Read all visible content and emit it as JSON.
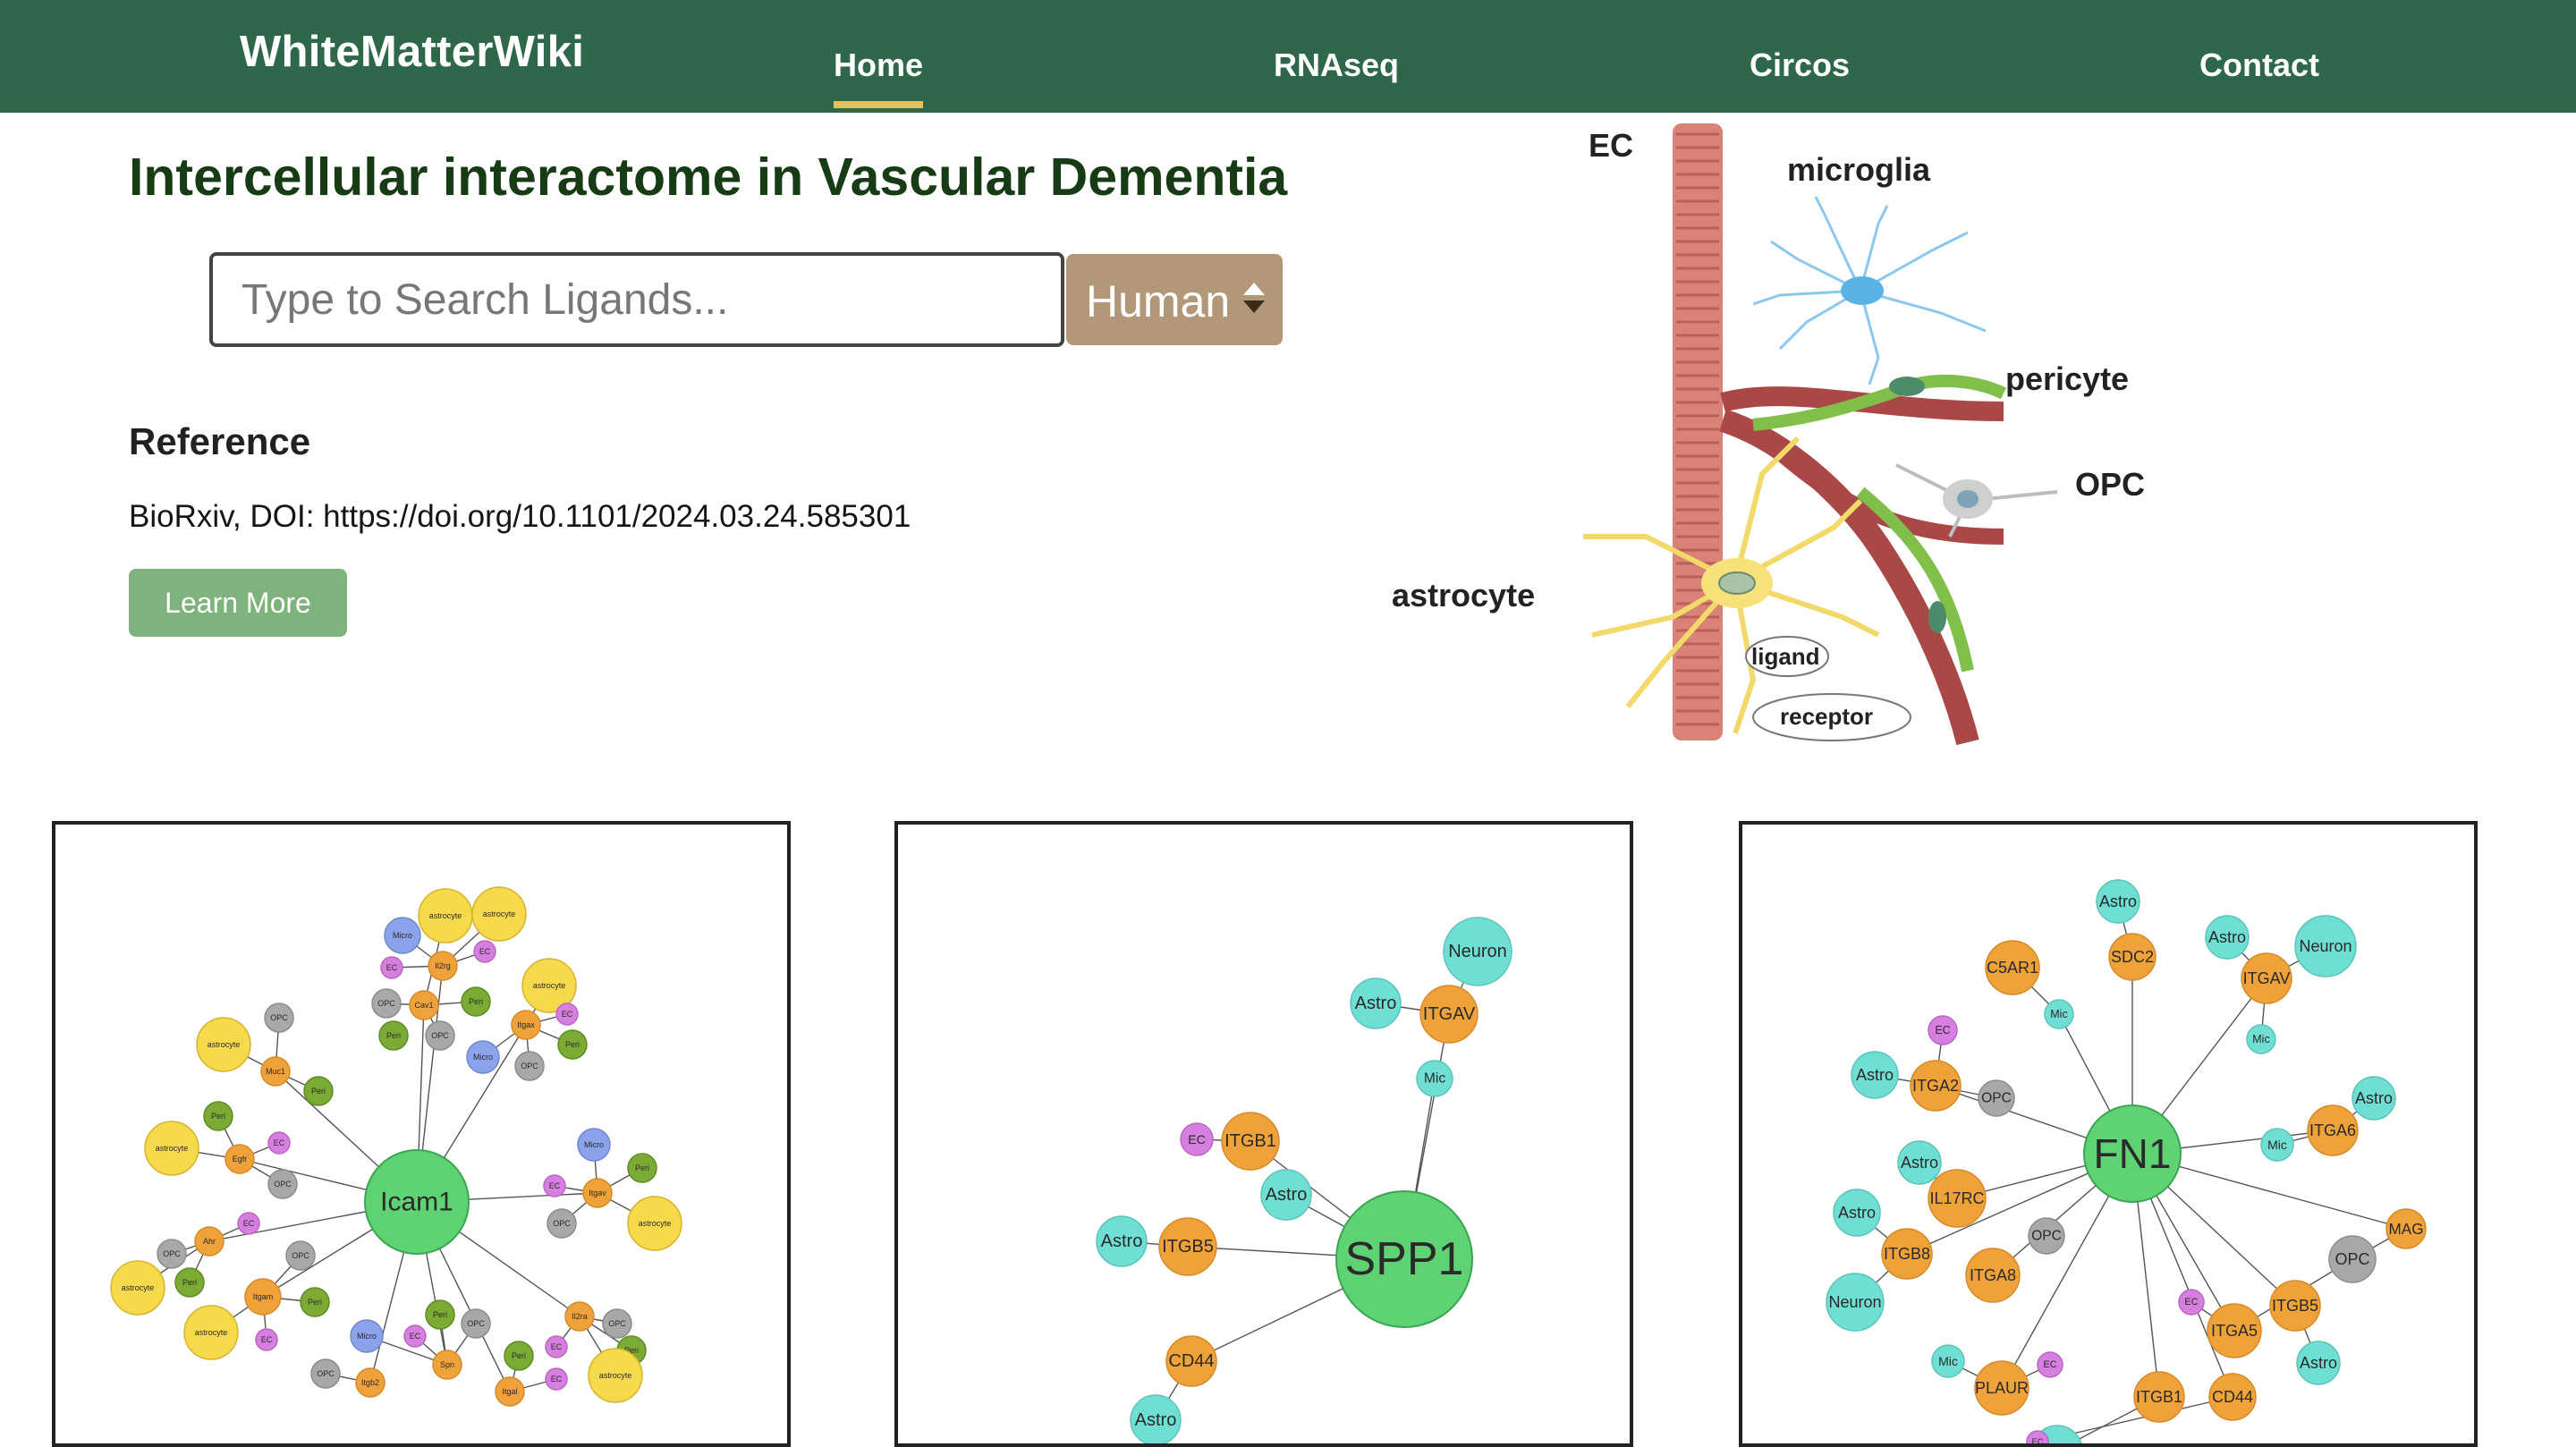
{
  "navbar": {
    "brand": "WhiteMatterWiki",
    "items": [
      {
        "label": "Home",
        "active": true
      },
      {
        "label": "RNAseq",
        "active": false
      },
      {
        "label": "Circos",
        "active": false
      },
      {
        "label": "Contact",
        "active": false
      }
    ]
  },
  "hero": {
    "title": "Intercellular interactome in Vascular Dementia",
    "search": {
      "placeholder": "Type to Search Ligands...",
      "value": ""
    },
    "species_select": {
      "selected": "Human"
    },
    "reference_heading": "Reference",
    "reference_text": "BioRxiv, DOI: https://doi.org/10.1101/2024.03.24.585301",
    "learn_more_label": "Learn More"
  },
  "illustration": {
    "labels": {
      "ec": "EC",
      "microglia": "microglia",
      "pericyte": "pericyte",
      "opc": "OPC",
      "astrocyte": "astrocyte",
      "ligand": "ligand",
      "receptor": "receptor"
    }
  },
  "colors": {
    "navbar": "#2f674a",
    "nav_active_underline": "#e2c15e",
    "hub": "#5fd374",
    "ligand_receptor": "#f0a23a",
    "astrocyte_mouse": "#f7d94c",
    "astro_human": "#6fded3",
    "ec": "#d77fe0",
    "opc": "#a8a8a8",
    "peri": "#7cab35",
    "micro": "#8aa3ea"
  },
  "networks": [
    {
      "hub": "Icam1",
      "nodes": [
        {
          "label": "astrocyte",
          "type": "astrocyte"
        },
        {
          "label": "astrocyte",
          "type": "astrocyte"
        },
        {
          "label": "Micro",
          "type": "micro"
        },
        {
          "label": "EC",
          "type": "ec"
        },
        {
          "label": "Il2rg",
          "type": "gene"
        },
        {
          "label": "EC",
          "type": "ec"
        },
        {
          "label": "astrocyte",
          "type": "astrocyte"
        },
        {
          "label": "OPC",
          "type": "opc"
        },
        {
          "label": "Cav1",
          "type": "gene"
        },
        {
          "label": "Peri",
          "type": "peri"
        },
        {
          "label": "OPC",
          "type": "opc"
        },
        {
          "label": "Peri",
          "type": "peri"
        },
        {
          "label": "Itgax",
          "type": "gene"
        },
        {
          "label": "EC",
          "type": "ec"
        },
        {
          "label": "Peri",
          "type": "peri"
        },
        {
          "label": "Micro",
          "type": "micro"
        },
        {
          "label": "OPC",
          "type": "opc"
        },
        {
          "label": "astrocyte",
          "type": "astrocyte"
        },
        {
          "label": "OPC",
          "type": "opc"
        },
        {
          "label": "Muc1",
          "type": "gene"
        },
        {
          "label": "Peri",
          "type": "peri"
        },
        {
          "label": "Peri",
          "type": "peri"
        },
        {
          "label": "astrocyte",
          "type": "astrocyte"
        },
        {
          "label": "EC",
          "type": "ec"
        },
        {
          "label": "Egfr",
          "type": "gene"
        },
        {
          "label": "OPC",
          "type": "opc"
        },
        {
          "label": "Micro",
          "type": "micro"
        },
        {
          "label": "Peri",
          "type": "peri"
        },
        {
          "label": "EC",
          "type": "ec"
        },
        {
          "label": "Itgav",
          "type": "gene"
        },
        {
          "label": "astrocyte",
          "type": "astrocyte"
        },
        {
          "label": "OPC",
          "type": "opc"
        },
        {
          "label": "OPC",
          "type": "opc"
        },
        {
          "label": "EC",
          "type": "ec"
        },
        {
          "label": "Ahr",
          "type": "gene"
        },
        {
          "label": "astrocyte",
          "type": "astrocyte"
        },
        {
          "label": "Peri",
          "type": "peri"
        },
        {
          "label": "OPC",
          "type": "opc"
        },
        {
          "label": "Itgam",
          "type": "gene"
        },
        {
          "label": "Peri",
          "type": "peri"
        },
        {
          "label": "astrocyte",
          "type": "astrocyte"
        },
        {
          "label": "EC",
          "type": "ec"
        },
        {
          "label": "Micro",
          "type": "micro"
        },
        {
          "label": "Peri",
          "type": "peri"
        },
        {
          "label": "EC",
          "type": "ec"
        },
        {
          "label": "OPC",
          "type": "opc"
        },
        {
          "label": "Spn",
          "type": "gene"
        },
        {
          "label": "OPC",
          "type": "opc"
        },
        {
          "label": "Itgb2",
          "type": "gene"
        },
        {
          "label": "Peri",
          "type": "peri"
        },
        {
          "label": "Itgal",
          "type": "gene"
        },
        {
          "label": "EC",
          "type": "ec"
        },
        {
          "label": "EC",
          "type": "ec"
        },
        {
          "label": "OPC",
          "type": "opc"
        },
        {
          "label": "Il2ra",
          "type": "gene"
        },
        {
          "label": "Peri",
          "type": "peri"
        },
        {
          "label": "astrocyte",
          "type": "astrocyte"
        }
      ]
    },
    {
      "hub": "SPP1",
      "nodes": [
        {
          "label": "Neuron",
          "type": "astro"
        },
        {
          "label": "Astro",
          "type": "astro"
        },
        {
          "label": "ITGAV",
          "type": "gene"
        },
        {
          "label": "Mic",
          "type": "astro"
        },
        {
          "label": "EC",
          "type": "ec"
        },
        {
          "label": "ITGB1",
          "type": "gene"
        },
        {
          "label": "Astro",
          "type": "astro"
        },
        {
          "label": "Astro",
          "type": "astro"
        },
        {
          "label": "ITGB5",
          "type": "gene"
        },
        {
          "label": "CD44",
          "type": "gene"
        },
        {
          "label": "Astro",
          "type": "astro"
        }
      ]
    },
    {
      "hub": "FN1",
      "nodes": [
        {
          "label": "Astro",
          "type": "astro"
        },
        {
          "label": "SDC2",
          "type": "gene"
        },
        {
          "label": "C5AR1",
          "type": "gene"
        },
        {
          "label": "Mic",
          "type": "astro"
        },
        {
          "label": "Astro",
          "type": "astro"
        },
        {
          "label": "Neuron",
          "type": "astro"
        },
        {
          "label": "ITGAV",
          "type": "gene"
        },
        {
          "label": "Mic",
          "type": "astro"
        },
        {
          "label": "EC",
          "type": "ec"
        },
        {
          "label": "Astro",
          "type": "astro"
        },
        {
          "label": "ITGA2",
          "type": "gene"
        },
        {
          "label": "OPC",
          "type": "opc"
        },
        {
          "label": "Astro",
          "type": "astro"
        },
        {
          "label": "ITGA6",
          "type": "gene"
        },
        {
          "label": "Mic",
          "type": "astro"
        },
        {
          "label": "Astro",
          "type": "astro"
        },
        {
          "label": "IL17RC",
          "type": "gene"
        },
        {
          "label": "Astro",
          "type": "astro"
        },
        {
          "label": "OPC",
          "type": "opc"
        },
        {
          "label": "ITGB8",
          "type": "gene"
        },
        {
          "label": "MAG",
          "type": "gene"
        },
        {
          "label": "OPC",
          "type": "opc"
        },
        {
          "label": "Neuron",
          "type": "astro"
        },
        {
          "label": "ITGA8",
          "type": "gene"
        },
        {
          "label": "EC",
          "type": "ec"
        },
        {
          "label": "ITGA5",
          "type": "gene"
        },
        {
          "label": "ITGB5",
          "type": "gene"
        },
        {
          "label": "Astro",
          "type": "astro"
        },
        {
          "label": "Mic",
          "type": "astro"
        },
        {
          "label": "EC",
          "type": "ec"
        },
        {
          "label": "PLAUR",
          "type": "gene"
        },
        {
          "label": "Astro",
          "type": "astro"
        },
        {
          "label": "ITGB1",
          "type": "gene"
        },
        {
          "label": "CD44",
          "type": "gene"
        },
        {
          "label": "EC",
          "type": "ec"
        }
      ]
    }
  ]
}
